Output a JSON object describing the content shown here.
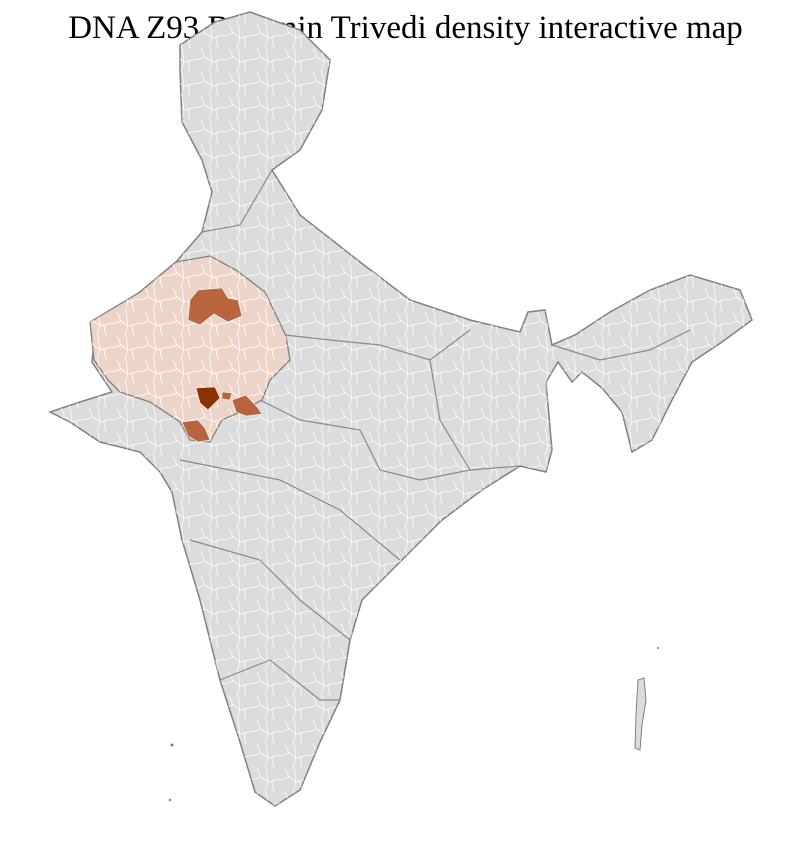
{
  "title": "DNA Z93 Brahmin Trivedi density interactive map",
  "map": {
    "region": "India",
    "base_color": "#dcdcdc",
    "district_border_color": "#ffffff",
    "state_border_color": "#808080",
    "density_levels": [
      {
        "level": "low",
        "color": "#ecd5c8"
      },
      {
        "level": "medium",
        "color": "#b8653f"
      },
      {
        "level": "high",
        "color": "#8b3200"
      }
    ],
    "highlighted": [
      {
        "area": "Rajasthan state",
        "level": "low"
      },
      {
        "area": "north Rajasthan districts",
        "level": "medium"
      },
      {
        "area": "south Rajasthan district",
        "level": "high"
      },
      {
        "area": "south-east Rajasthan district",
        "level": "medium"
      },
      {
        "area": "south-west Rajasthan district",
        "level": "medium"
      }
    ]
  }
}
